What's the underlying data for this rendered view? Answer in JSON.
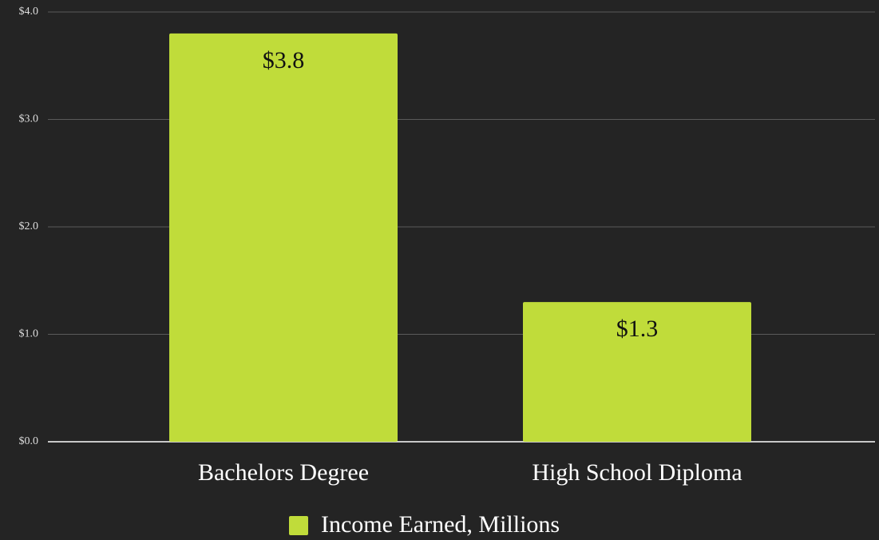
{
  "chart_data": {
    "type": "bar",
    "categories": [
      "Bachelors Degree",
      "High School Diploma"
    ],
    "series": [
      {
        "name": "Income Earned, Millions",
        "color": "#c0dc3a",
        "values": [
          3.8,
          1.3
        ],
        "value_labels": [
          "$3.8",
          "$1.3"
        ]
      }
    ],
    "ylim": [
      0,
      4
    ],
    "yticks": [
      {
        "value": 0,
        "label": "$0.0"
      },
      {
        "value": 1,
        "label": "$1.0"
      },
      {
        "value": 2,
        "label": "$2.0"
      },
      {
        "value": 3,
        "label": "$3.0"
      },
      {
        "value": 4,
        "label": "$4.0"
      }
    ],
    "grid": true,
    "legend": "bottom"
  }
}
